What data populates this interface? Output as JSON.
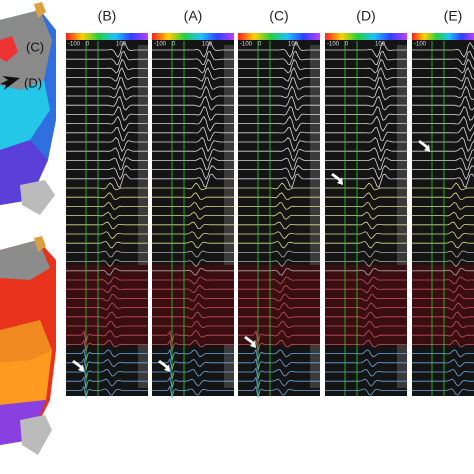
{
  "panels": [
    {
      "label": "(B)",
      "scale": [
        "-100",
        "0",
        "100"
      ]
    },
    {
      "label": "(A)",
      "scale": [
        "-100",
        "0",
        "100"
      ]
    },
    {
      "label": "(C)",
      "scale": [
        "-100",
        "0",
        "100"
      ]
    },
    {
      "label": "(D)",
      "scale": [
        "-100",
        "0",
        "100"
      ]
    },
    {
      "label": "(E)",
      "scale": [
        "-100"
      ]
    }
  ],
  "map_labels": [
    "(C)",
    "(D)"
  ]
}
